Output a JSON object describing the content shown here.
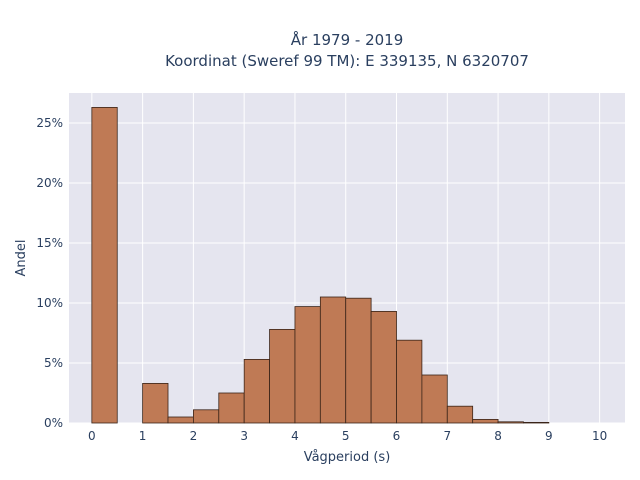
{
  "chart_data": {
    "type": "bar",
    "title": "År 1979 - 2019",
    "subtitle": "Koordinat (Sweref 99 TM): E 339135, N 6320707",
    "xlabel": "Vågperiod (s)",
    "ylabel": "Andel",
    "bin_width": 0.5,
    "bin_starts": [
      0,
      0.5,
      1,
      1.5,
      2,
      2.5,
      3,
      3.5,
      4,
      4.5,
      5,
      5.5,
      6,
      6.5,
      7,
      7.5,
      8,
      8.5,
      9,
      9.5
    ],
    "values": [
      26.3,
      0,
      3.3,
      0.5,
      1.1,
      2.5,
      5.3,
      7.8,
      9.7,
      10.5,
      10.4,
      9.3,
      6.9,
      4.0,
      1.4,
      0.3,
      0.1,
      0.05,
      0,
      0
    ],
    "xlim": [
      -0.45,
      10.5
    ],
    "ylim": [
      0,
      27.5
    ],
    "x_ticks": [
      0,
      1,
      2,
      3,
      4,
      5,
      6,
      7,
      8,
      9,
      10
    ],
    "x_tick_labels": [
      "0",
      "1",
      "2",
      "3",
      "4",
      "5",
      "6",
      "7",
      "8",
      "9",
      "10"
    ],
    "y_ticks": [
      0,
      5,
      10,
      15,
      20,
      25
    ],
    "y_tick_labels": [
      "0%",
      "5%",
      "10%",
      "15%",
      "20%",
      "25%"
    ],
    "grid": true,
    "colors": {
      "bar": "#bf7a55",
      "plot_bg": "#e5e5ef",
      "text": "#2a3f5f"
    }
  }
}
